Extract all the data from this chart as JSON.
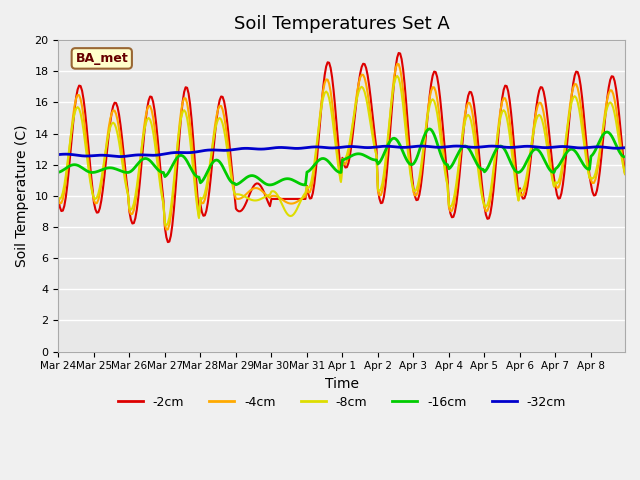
{
  "title": "Soil Temperatures Set A",
  "xlabel": "Time",
  "ylabel": "Soil Temperature (C)",
  "ylim": [
    0,
    20
  ],
  "yticks": [
    0,
    2,
    4,
    6,
    8,
    10,
    12,
    14,
    16,
    18,
    20
  ],
  "x_labels": [
    "Mar 24",
    "Mar 25",
    "Mar 26",
    "Mar 27",
    "Mar 28",
    "Mar 29",
    "Mar 30",
    "Mar 31",
    "Apr 1",
    "Apr 2",
    "Apr 3",
    "Apr 4",
    "Apr 5",
    "Apr 6",
    "Apr 7",
    "Apr 8"
  ],
  "colors": {
    "-2cm": "#dd0000",
    "-4cm": "#ffaa00",
    "-8cm": "#dddd00",
    "-16cm": "#00cc00",
    "-32cm": "#0000cc"
  },
  "linewidths": {
    "-2cm": 1.5,
    "-4cm": 1.5,
    "-8cm": 1.5,
    "-16cm": 2.0,
    "-32cm": 2.0
  },
  "legend_label": "BA_met",
  "background_color": "#e8e8e8",
  "title_fontsize": 13,
  "axis_label_fontsize": 10
}
